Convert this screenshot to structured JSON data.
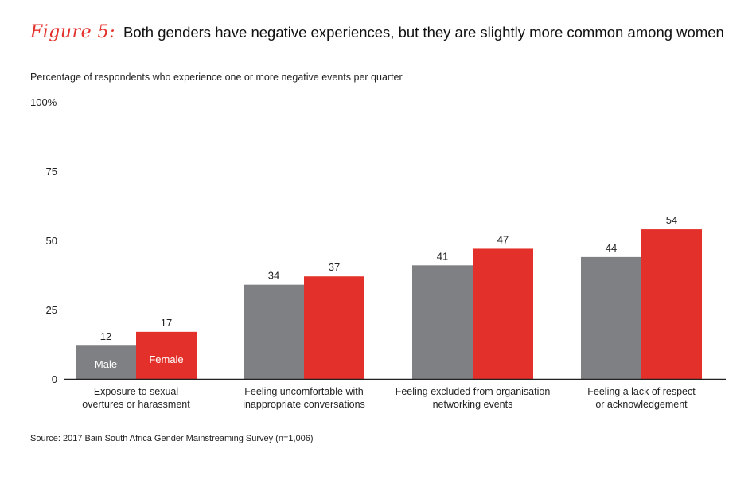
{
  "title": {
    "figure_label": "Figure 5:",
    "text": "Both genders have negative experiences, but they are slightly more common among women"
  },
  "subtitle": "Percentage of respondents who experience one or more negative events per quarter",
  "source": "Source: 2017 Bain South Africa Gender Mainstreaming Survey (n=1,006)",
  "colors": {
    "male": "#7f8083",
    "female": "#e4302a",
    "axis": "#222222"
  },
  "chart_data": {
    "type": "bar",
    "title": "Both genders have negative experiences, but they are slightly more common among women",
    "ylabel": "Percentage of respondents who experience one or more negative events per quarter",
    "xlabel": "",
    "ylim": [
      0,
      100
    ],
    "yticks": [
      {
        "value": 0,
        "label": "0"
      },
      {
        "value": 25,
        "label": "25"
      },
      {
        "value": 50,
        "label": "50"
      },
      {
        "value": 75,
        "label": "75"
      },
      {
        "value": 100,
        "label": "100%"
      }
    ],
    "grid": false,
    "legend": "inside-first-bars",
    "categories": [
      [
        "Exposure to sexual",
        "overtures or harassment"
      ],
      [
        "Feeling uncomfortable with",
        "inappropriate conversations"
      ],
      [
        "Feeling excluded from organisation",
        "networking events"
      ],
      [
        "Feeling a lack of respect",
        "or acknowledgement"
      ]
    ],
    "series": [
      {
        "name": "Male",
        "values": [
          12,
          34,
          41,
          44
        ]
      },
      {
        "name": "Female",
        "values": [
          17,
          37,
          47,
          54
        ]
      }
    ]
  }
}
